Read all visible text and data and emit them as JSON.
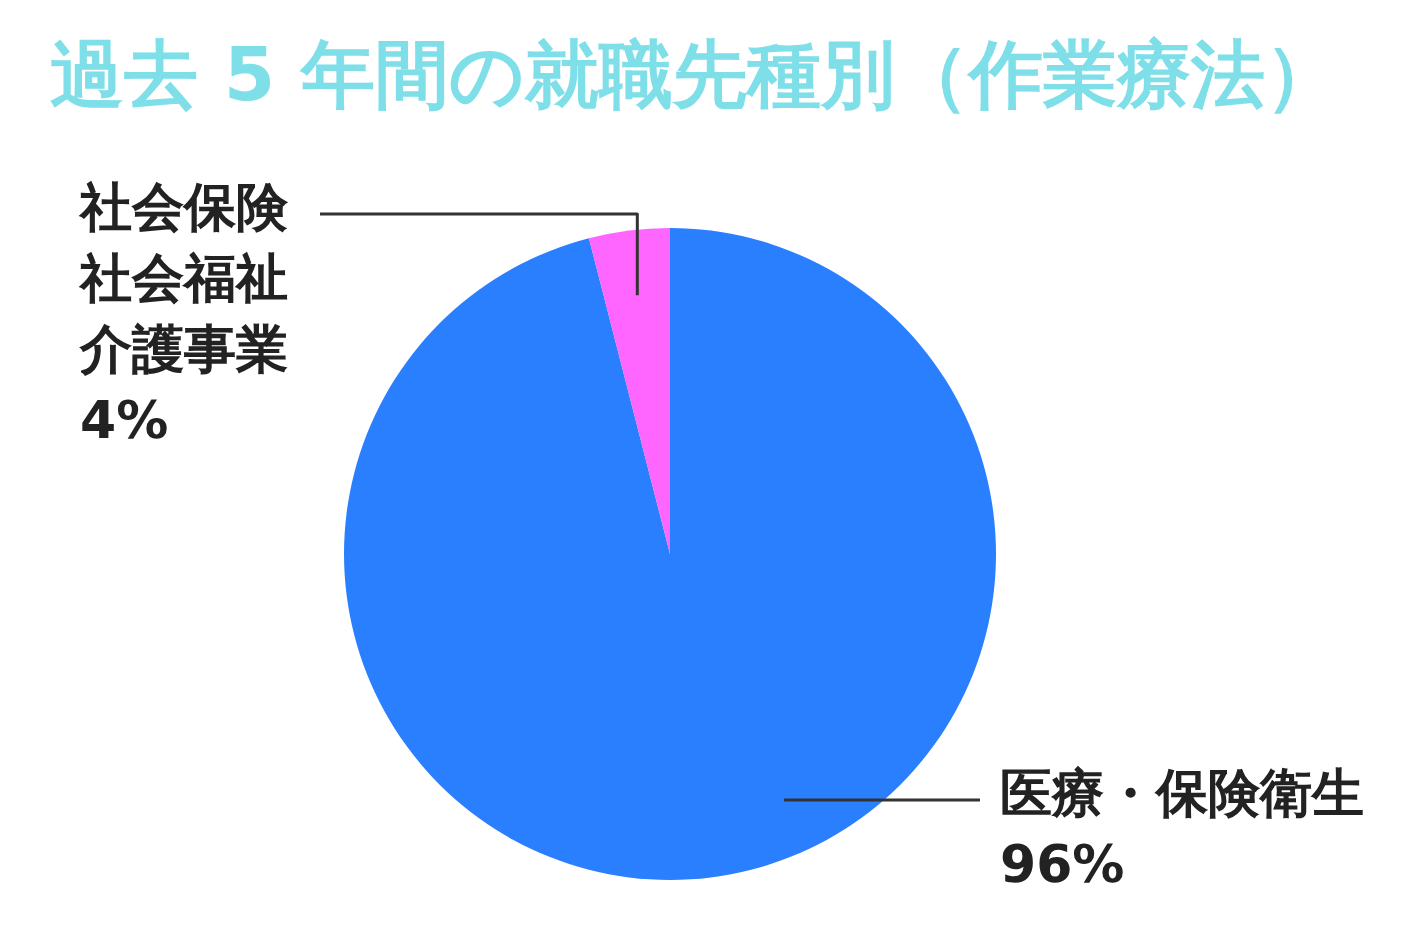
{
  "chart_data": {
    "type": "pie",
    "title": "過去 5 年間の就職先種別（作業療法）",
    "categories": [
      "医療・保険衛生",
      "社会保険社会福祉介護事業"
    ],
    "values": [
      96,
      4
    ],
    "colors": [
      "#2a7fff",
      "#ff66ff"
    ],
    "value_labels": [
      "96%",
      "4%"
    ]
  }
}
